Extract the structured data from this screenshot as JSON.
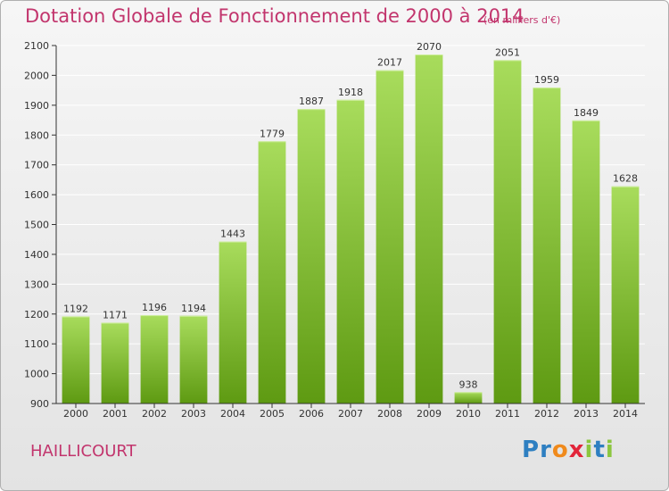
{
  "title": "Dotation Globale de Fonctionnement de 2000 à 2014",
  "unit_note": "(en milliers d'€)",
  "commune": "HAILLICOURT",
  "logo": {
    "text": "Proxiti",
    "letters": [
      "P",
      "r",
      "o",
      "x",
      "i",
      "t",
      "i"
    ],
    "colors": [
      "#2e7fc1",
      "#2e7fc1",
      "#f08a1c",
      "#e2253a",
      "#8cc63f",
      "#2e7fc1",
      "#8cc63f"
    ]
  },
  "colors": {
    "accent": "#c2356d",
    "bar_light": "#a8dc5c",
    "bar_dark": "#5e9a12",
    "grid": "#ffffff"
  },
  "chart_data": {
    "type": "bar",
    "title": "Dotation Globale de Fonctionnement de 2000 à 2014",
    "xlabel": "",
    "ylabel": "",
    "categories": [
      "2000",
      "2001",
      "2002",
      "2003",
      "2004",
      "2005",
      "2006",
      "2007",
      "2008",
      "2009",
      "2010",
      "2011",
      "2012",
      "2013",
      "2014"
    ],
    "values": [
      1192,
      1171,
      1196,
      1194,
      1443,
      1779,
      1887,
      1918,
      2017,
      2070,
      938,
      2051,
      1959,
      1849,
      1628
    ],
    "ylim": [
      900,
      2100
    ],
    "yticks": [
      900,
      1000,
      1100,
      1200,
      1300,
      1400,
      1500,
      1600,
      1700,
      1800,
      1900,
      2000,
      2100
    ],
    "grid": true,
    "legend": "none"
  }
}
